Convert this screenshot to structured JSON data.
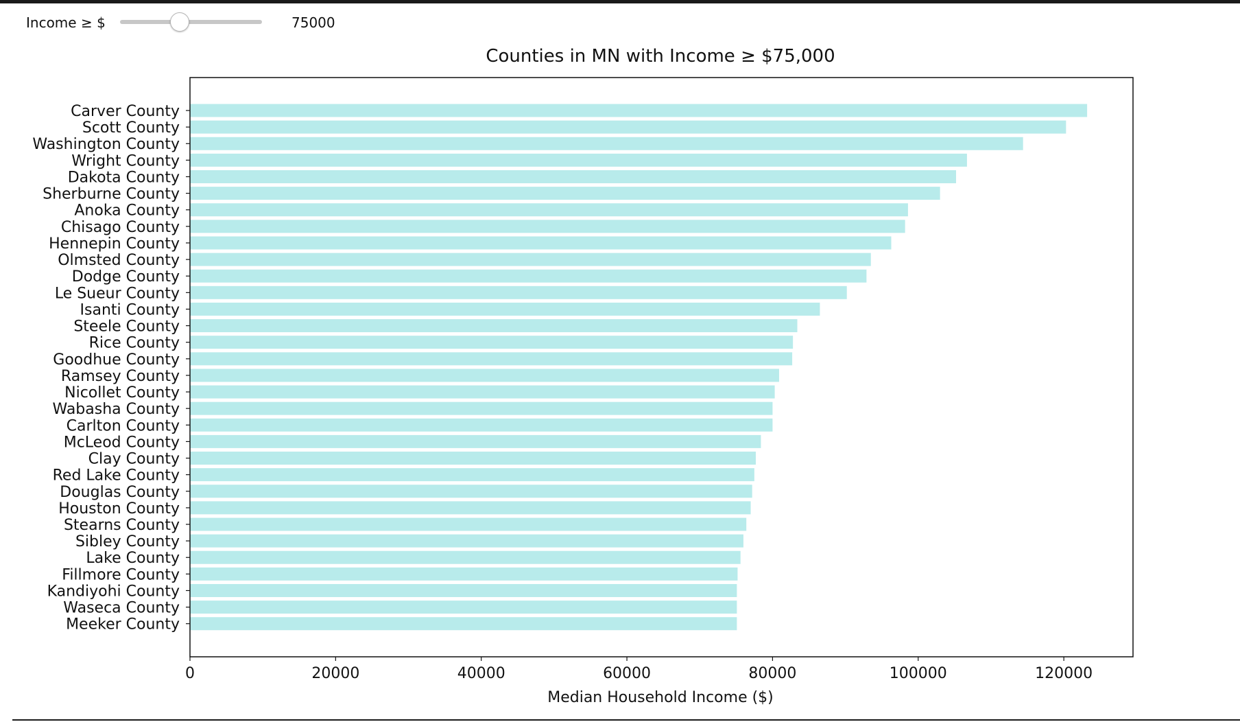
{
  "controls": {
    "label": "Income ≥ $",
    "value": "75000",
    "slider_fraction": 0.42
  },
  "chart_data": {
    "type": "bar",
    "orientation": "horizontal",
    "title": "Counties in MN with Income ≥ $75,000",
    "xlabel": "Median Household Income ($)",
    "ylabel": "",
    "xlim": [
      0,
      129500
    ],
    "xticks": [
      0,
      20000,
      40000,
      60000,
      80000,
      100000,
      120000
    ],
    "xtick_labels": [
      "0",
      "20000",
      "40000",
      "60000",
      "80000",
      "100000",
      "120000"
    ],
    "bar_color": "#b8ebeb",
    "grid": false,
    "categories": [
      "Carver County",
      "Scott County",
      "Washington County",
      "Wright County",
      "Dakota County",
      "Sherburne County",
      "Anoka County",
      "Chisago County",
      "Hennepin County",
      "Olmsted County",
      "Dodge County",
      "Le Sueur County",
      "Isanti County",
      "Steele County",
      "Rice County",
      "Goodhue County",
      "Ramsey County",
      "Nicollet County",
      "Wabasha County",
      "Carlton County",
      "McLeod County",
      "Clay County",
      "Red Lake County",
      "Douglas County",
      "Houston County",
      "Stearns County",
      "Sibley County",
      "Lake County",
      "Fillmore County",
      "Kandiyohi County",
      "Waseca County",
      "Meeker County"
    ],
    "values": [
      123200,
      120300,
      114400,
      106700,
      105200,
      103000,
      98600,
      98200,
      96300,
      93500,
      92900,
      90200,
      86500,
      83400,
      82800,
      82700,
      80900,
      80300,
      80000,
      80000,
      78400,
      77700,
      77500,
      77200,
      77000,
      76400,
      76000,
      75600,
      75200,
      75100,
      75100,
      75100
    ]
  }
}
